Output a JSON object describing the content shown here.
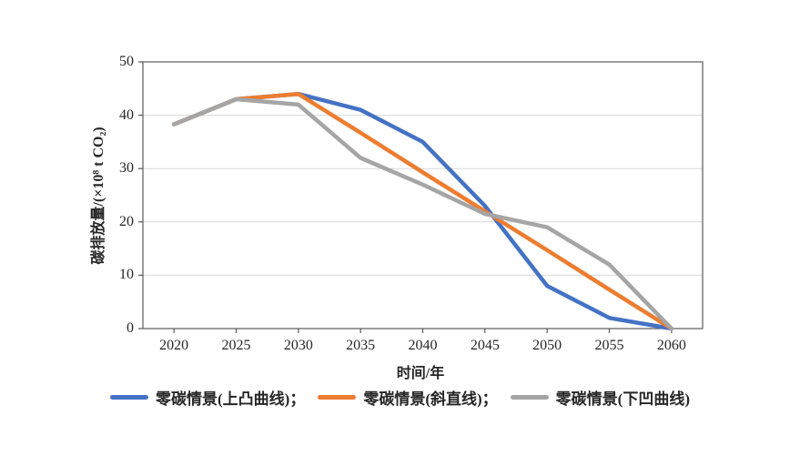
{
  "chart_data": {
    "type": "line",
    "title": "",
    "xlabel": "时间/年",
    "ylabel": "碳排放量/(×10⁸ t CO₂)",
    "categories": [
      "2020",
      "2025",
      "2030",
      "2035",
      "2040",
      "2045",
      "2050",
      "2055",
      "2060"
    ],
    "ylim": [
      0,
      50
    ],
    "yticks": [
      0,
      10,
      20,
      30,
      40,
      50
    ],
    "grid": "horizontal",
    "legend_position": "bottom",
    "series": [
      {
        "id": "convex",
        "name": "零碳情景(上凸曲线)",
        "legend_label": "零碳情景(上凸曲线)；",
        "color": "#4472C4",
        "values": [
          38.3,
          43,
          44,
          41,
          35,
          23,
          8,
          2,
          0
        ]
      },
      {
        "id": "straight",
        "name": "零碳情景(斜直线)",
        "legend_label": "零碳情景(斜直线)；",
        "color": "#ED7D31",
        "values": [
          38.3,
          43,
          44,
          36.7,
          29.3,
          22,
          14.7,
          7.3,
          0
        ]
      },
      {
        "id": "concave",
        "name": "零碳情景(下凹曲线)",
        "legend_label": "零碳情景(下凹曲线)",
        "color": "#A5A5A5",
        "values": [
          38.3,
          43,
          42,
          32,
          27,
          21.5,
          19,
          12,
          0
        ]
      }
    ],
    "colors": {
      "axis": "#595959",
      "grid": "#D9D9D9",
      "text": "#262626",
      "background": "#FFFFFF"
    }
  }
}
